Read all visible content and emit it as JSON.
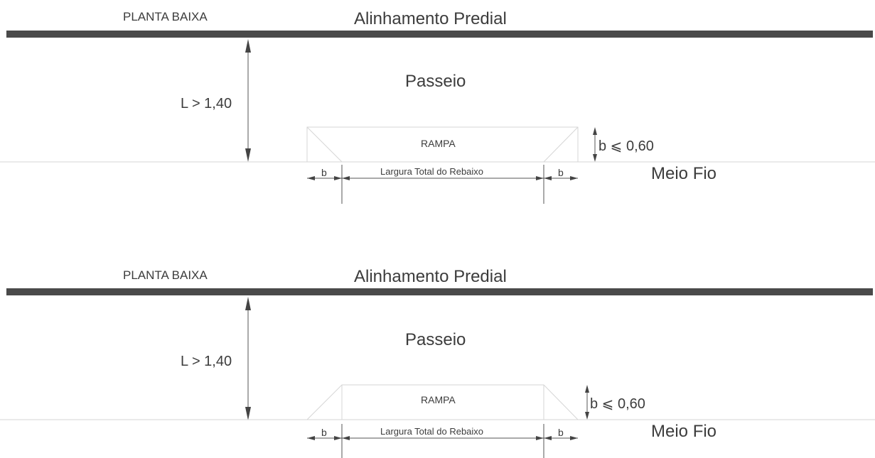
{
  "panels": [
    {
      "plan_label": "PLANTA BAIXA",
      "building_line": "Alinhamento Predial",
      "sidewalk": "Passeio",
      "width_dim": "L > 1,40",
      "ramp": "RAMPA",
      "ramp_depth": "b ⩽ 0,60",
      "curb": "Meio Fio",
      "b_left": "b",
      "total_width": "Largura Total do Rebaixo",
      "b_right": "b"
    },
    {
      "plan_label": "PLANTA BAIXA",
      "building_line": "Alinhamento Predial",
      "sidewalk": "Passeio",
      "width_dim": "L > 1,40",
      "ramp": "RAMPA",
      "ramp_depth": "b ⩽ 0,60",
      "curb": "Meio Fio",
      "b_left": "b",
      "total_width": "Largura Total do Rebaixo",
      "b_right": "b"
    }
  ],
  "colors": {
    "wall": "#4a4a4a",
    "text": "#3c3c3c",
    "thin_line": "#d6d6d6"
  }
}
